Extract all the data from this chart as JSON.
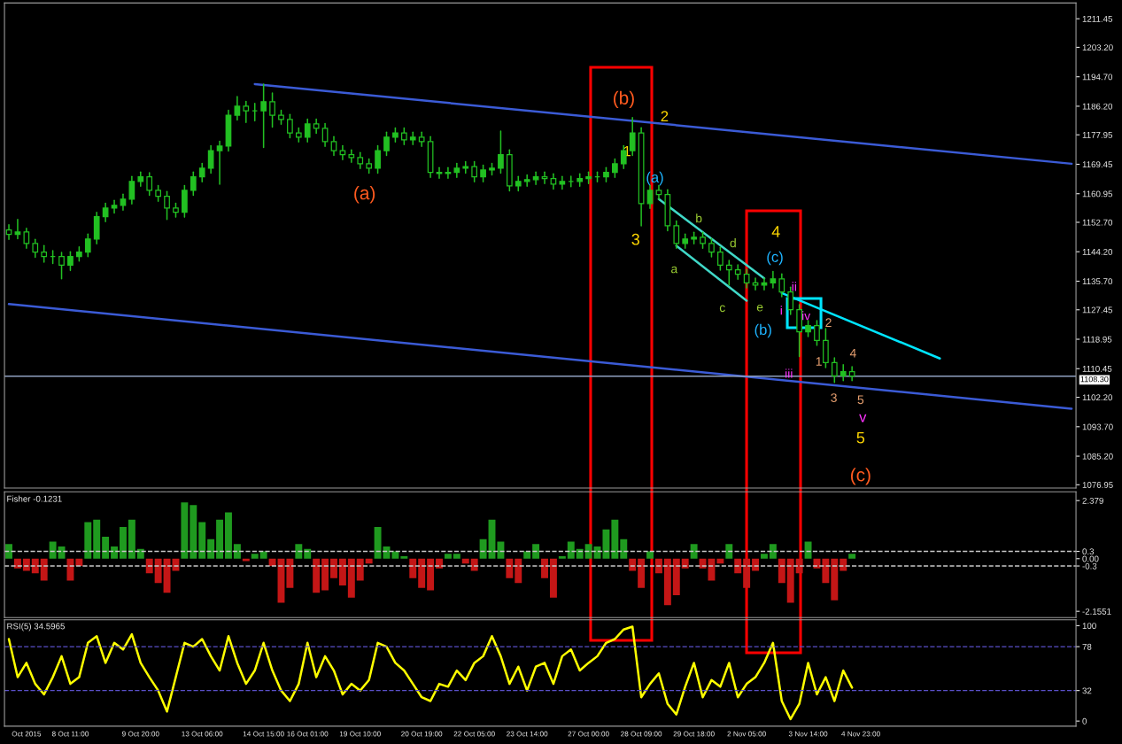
{
  "chart_data": [
    {
      "type": "candlestick",
      "tick_labels": "y",
      "grid": false,
      "ylim": [
        1076.0,
        1216.0
      ],
      "yticks": [
        {
          "value": 1211.45,
          "label": "1211.45"
        },
        {
          "value": 1203.2,
          "label": "1203.20"
        },
        {
          "value": 1194.7,
          "label": "1194.70"
        },
        {
          "value": 1186.2,
          "label": "1186.20"
        },
        {
          "value": 1177.95,
          "label": "1177.95"
        },
        {
          "value": 1169.45,
          "label": "1169.45"
        },
        {
          "value": 1160.95,
          "label": "1160.95"
        },
        {
          "value": 1152.7,
          "label": "1152.70"
        },
        {
          "value": 1144.2,
          "label": "1144.20"
        },
        {
          "value": 1135.7,
          "label": "1135.70"
        },
        {
          "value": 1127.45,
          "label": "1127.45"
        },
        {
          "value": 1118.95,
          "label": "1118.95"
        },
        {
          "value": 1110.45,
          "label": "1110.45"
        },
        {
          "value": 1102.2,
          "label": "1102.20"
        },
        {
          "value": 1093.7,
          "label": "1093.70"
        },
        {
          "value": 1085.2,
          "label": "1085.20"
        },
        {
          "value": 1076.95,
          "label": "1076.95"
        }
      ],
      "series": [
        {
          "type": "candlestick",
          "color": "#22c022",
          "ohlc": [
            [
              1150.5,
              1152.0,
              1147.8,
              1149.2
            ],
            [
              1149.2,
              1153.5,
              1148.0,
              1149.9
            ],
            [
              1149.9,
              1151.0,
              1145.2,
              1146.6
            ],
            [
              1146.6,
              1147.8,
              1142.6,
              1144.1
            ],
            [
              1144.1,
              1146.0,
              1141.2,
              1142.8
            ],
            [
              1142.8,
              1144.5,
              1140.8,
              1142.8
            ],
            [
              1142.8,
              1144.0,
              1136.4,
              1140.3
            ],
            [
              1140.3,
              1144.2,
              1138.8,
              1142.8
            ],
            [
              1142.8,
              1145.6,
              1141.5,
              1144.1
            ],
            [
              1144.1,
              1149.3,
              1142.8,
              1147.9
            ],
            [
              1147.9,
              1155.6,
              1146.5,
              1154.3
            ],
            [
              1154.3,
              1158.2,
              1152.9,
              1156.8
            ],
            [
              1156.8,
              1159.0,
              1155.4,
              1157.6
            ],
            [
              1157.6,
              1160.8,
              1156.2,
              1159.4
            ],
            [
              1159.4,
              1165.9,
              1158.0,
              1164.5
            ],
            [
              1164.5,
              1167.2,
              1163.1,
              1165.8
            ],
            [
              1165.8,
              1167.0,
              1160.5,
              1161.9
            ],
            [
              1161.9,
              1163.3,
              1158.8,
              1160.2
            ],
            [
              1160.2,
              1161.6,
              1153.5,
              1156.8
            ],
            [
              1156.8,
              1158.2,
              1154.2,
              1155.6
            ],
            [
              1155.6,
              1163.3,
              1154.2,
              1161.9
            ],
            [
              1161.9,
              1167.2,
              1160.5,
              1165.8
            ],
            [
              1165.8,
              1169.7,
              1164.4,
              1168.3
            ],
            [
              1168.3,
              1174.8,
              1166.9,
              1173.4
            ],
            [
              1173.4,
              1176.1,
              1163.7,
              1174.7
            ],
            [
              1174.7,
              1185.0,
              1173.3,
              1183.6
            ],
            [
              1183.6,
              1189.0,
              1182.2,
              1186.2
            ],
            [
              1186.2,
              1187.6,
              1181.5,
              1184.9
            ],
            [
              1184.9,
              1187.0,
              1182.0,
              1184.9
            ],
            [
              1184.9,
              1192.6,
              1174.3,
              1187.5
            ],
            [
              1187.5,
              1190.0,
              1180.2,
              1183.6
            ],
            [
              1183.6,
              1185.0,
              1181.0,
              1182.4
            ],
            [
              1182.4,
              1183.8,
              1177.1,
              1178.5
            ],
            [
              1178.5,
              1179.9,
              1175.9,
              1177.3
            ],
            [
              1177.3,
              1182.5,
              1175.9,
              1181.1
            ],
            [
              1181.1,
              1182.5,
              1178.4,
              1179.8
            ],
            [
              1179.8,
              1181.2,
              1174.6,
              1176.0
            ],
            [
              1176.0,
              1177.4,
              1172.0,
              1173.4
            ],
            [
              1173.4,
              1174.8,
              1170.8,
              1172.2
            ],
            [
              1172.2,
              1173.6,
              1170.0,
              1171.4
            ],
            [
              1171.4,
              1172.8,
              1168.2,
              1169.6
            ],
            [
              1169.6,
              1171.0,
              1166.9,
              1168.3
            ],
            [
              1168.3,
              1174.8,
              1166.9,
              1173.4
            ],
            [
              1173.4,
              1178.7,
              1172.0,
              1177.3
            ],
            [
              1177.3,
              1179.9,
              1175.9,
              1178.5
            ],
            [
              1178.5,
              1179.9,
              1175.1,
              1176.5
            ],
            [
              1176.5,
              1178.7,
              1175.1,
              1177.3
            ],
            [
              1177.3,
              1178.7,
              1174.6,
              1176.0
            ],
            [
              1176.0,
              1177.4,
              1165.7,
              1167.1
            ],
            [
              1167.1,
              1168.5,
              1165.4,
              1166.8
            ],
            [
              1166.8,
              1168.5,
              1165.4,
              1167.1
            ],
            [
              1167.1,
              1169.7,
              1165.7,
              1168.3
            ],
            [
              1168.3,
              1170.2,
              1166.9,
              1168.8
            ],
            [
              1168.8,
              1170.2,
              1164.4,
              1165.8
            ],
            [
              1165.8,
              1169.2,
              1164.4,
              1167.8
            ],
            [
              1167.8,
              1169.7,
              1166.4,
              1168.3
            ],
            [
              1168.3,
              1179.0,
              1166.9,
              1172.2
            ],
            [
              1172.2,
              1173.6,
              1161.8,
              1163.2
            ],
            [
              1163.2,
              1165.9,
              1161.8,
              1164.5
            ],
            [
              1164.5,
              1166.4,
              1163.1,
              1165.0
            ],
            [
              1165.0,
              1167.2,
              1163.6,
              1165.8
            ],
            [
              1165.8,
              1167.2,
              1163.9,
              1165.3
            ],
            [
              1165.3,
              1166.7,
              1162.3,
              1163.7
            ],
            [
              1163.7,
              1165.9,
              1162.3,
              1164.5
            ],
            [
              1164.5,
              1166.0,
              1163.0,
              1164.5
            ],
            [
              1164.5,
              1166.7,
              1163.1,
              1165.3
            ],
            [
              1165.3,
              1167.2,
              1163.9,
              1165.8
            ],
            [
              1165.8,
              1167.2,
              1164.4,
              1165.8
            ],
            [
              1165.8,
              1168.5,
              1164.4,
              1167.1
            ],
            [
              1167.1,
              1171.0,
              1165.7,
              1169.6
            ],
            [
              1169.6,
              1174.8,
              1168.2,
              1173.4
            ],
            [
              1173.4,
              1182.9,
              1172.0,
              1178.5
            ],
            [
              1178.5,
              1180.0,
              1151.7,
              1158.1
            ],
            [
              1158.1,
              1163.3,
              1156.7,
              1161.9
            ],
            [
              1161.9,
              1163.3,
              1159.3,
              1160.7
            ],
            [
              1160.7,
              1162.1,
              1150.3,
              1151.7
            ],
            [
              1151.7,
              1153.1,
              1145.2,
              1146.6
            ],
            [
              1146.6,
              1149.3,
              1145.2,
              1147.9
            ],
            [
              1147.9,
              1149.8,
              1146.5,
              1148.4
            ],
            [
              1148.4,
              1149.8,
              1145.2,
              1146.6
            ],
            [
              1146.6,
              1148.0,
              1142.7,
              1144.1
            ],
            [
              1144.1,
              1145.5,
              1138.9,
              1140.3
            ],
            [
              1140.3,
              1141.7,
              1134.6,
              1139.0
            ],
            [
              1139.0,
              1140.4,
              1136.3,
              1137.7
            ],
            [
              1137.7,
              1139.1,
              1133.8,
              1135.2
            ],
            [
              1135.2,
              1136.6,
              1133.2,
              1134.6
            ],
            [
              1134.6,
              1136.6,
              1133.2,
              1135.2
            ],
            [
              1135.2,
              1138.5,
              1133.8,
              1136.4
            ],
            [
              1136.4,
              1137.8,
              1131.2,
              1132.6
            ],
            [
              1132.6,
              1134.0,
              1126.1,
              1127.5
            ],
            [
              1127.5,
              1128.9,
              1114.0,
              1121.1
            ],
            [
              1121.1,
              1124.3,
              1119.7,
              1122.9
            ],
            [
              1122.9,
              1124.3,
              1117.2,
              1118.6
            ],
            [
              1118.6,
              1122.0,
              1110.8,
              1112.2
            ],
            [
              1112.2,
              1113.6,
              1106.5,
              1108.4
            ],
            [
              1108.4,
              1111.6,
              1107.0,
              1109.6
            ],
            [
              1109.6,
              1111.0,
              1107.0,
              1108.3
            ],
            null,
            null,
            null,
            null,
            null,
            null,
            null,
            null,
            null,
            null,
            null,
            null,
            null,
            null,
            null,
            null,
            null,
            null,
            null,
            null,
            null,
            null,
            null,
            null,
            null
          ]
        },
        {
          "type": "line",
          "color": "#3b5bd6",
          "values": [
            null,
            null,
            null,
            null,
            null,
            null,
            null,
            null,
            null,
            null,
            null,
            null,
            null,
            null,
            null,
            null,
            null,
            null,
            null,
            null,
            null,
            null,
            null,
            null,
            null,
            null,
            null,
            null,
            1192.6,
            null,
            null,
            null,
            null,
            null,
            null,
            null,
            null,
            null,
            null,
            null,
            null,
            null,
            null,
            null,
            null,
            null,
            null,
            null,
            null,
            null,
            null,
            null,
            null,
            null,
            null,
            null,
            null,
            null,
            null,
            null,
            null,
            null,
            null,
            null,
            null,
            null,
            null,
            null,
            null,
            null,
            null,
            null,
            null,
            null,
            null,
            null,
            null,
            null,
            null,
            null,
            null,
            null,
            null,
            null,
            null,
            null,
            null,
            null,
            null,
            null,
            null,
            null,
            null,
            null,
            null,
            null,
            null,
            null,
            null,
            null,
            null,
            null,
            null,
            null,
            null,
            null,
            null,
            null,
            null,
            null,
            null,
            null,
            null,
            null,
            null,
            null,
            null,
            null,
            null,
            null,
            null,
            1169.6
          ]
        },
        {
          "type": "line",
          "color": "#3b5bd6",
          "values": [
            1129.1,
            null,
            null,
            null,
            null,
            null,
            null,
            null,
            null,
            null,
            null,
            null,
            null,
            null,
            null,
            null,
            null,
            null,
            null,
            null,
            null,
            null,
            null,
            null,
            null,
            null,
            null,
            null,
            null,
            null,
            null,
            null,
            null,
            null,
            null,
            null,
            null,
            null,
            null,
            null,
            null,
            null,
            null,
            null,
            null,
            null,
            null,
            null,
            null,
            null,
            null,
            null,
            null,
            null,
            null,
            null,
            null,
            null,
            null,
            null,
            null,
            null,
            null,
            null,
            null,
            null,
            null,
            null,
            null,
            null,
            null,
            null,
            null,
            null,
            null,
            null,
            null,
            null,
            null,
            null,
            null,
            null,
            null,
            null,
            null,
            null,
            null,
            null,
            null,
            null,
            null,
            null,
            null,
            null,
            null,
            null,
            null,
            null,
            null,
            null,
            null,
            null,
            null,
            null,
            null,
            null,
            null,
            null,
            null,
            null,
            null,
            null,
            null,
            null,
            null,
            null,
            null,
            null,
            null,
            null,
            null,
            1098.9
          ]
        },
        {
          "type": "line",
          "color": "#40d8c8",
          "values": [
            null,
            null,
            null,
            null,
            null,
            null,
            null,
            null,
            null,
            null,
            null,
            null,
            null,
            null,
            null,
            null,
            null,
            null,
            null,
            null,
            null,
            null,
            null,
            null,
            null,
            null,
            null,
            null,
            null,
            null,
            null,
            null,
            null,
            null,
            null,
            null,
            null,
            null,
            null,
            null,
            null,
            null,
            null,
            null,
            null,
            null,
            null,
            null,
            null,
            null,
            null,
            null,
            null,
            null,
            null,
            null,
            null,
            null,
            null,
            null,
            null,
            null,
            null,
            null,
            null,
            null,
            null,
            null,
            null,
            null,
            null,
            null,
            null,
            null,
            1159.4,
            null,
            null,
            null,
            null,
            null,
            null,
            null,
            null,
            null,
            null,
            null,
            1136.5,
            null,
            null,
            null,
            null,
            null,
            null,
            null,
            null,
            null,
            null,
            null,
            null,
            null,
            null,
            null,
            null,
            null,
            null,
            null,
            null,
            null,
            null,
            null,
            null,
            null,
            null,
            null,
            null,
            null,
            null,
            null,
            null,
            null,
            null,
            null
          ]
        },
        {
          "type": "line",
          "color": "#40d8c8",
          "values": [
            null,
            null,
            null,
            null,
            null,
            null,
            null,
            null,
            null,
            null,
            null,
            null,
            null,
            null,
            null,
            null,
            null,
            null,
            null,
            null,
            null,
            null,
            null,
            null,
            null,
            null,
            null,
            null,
            null,
            null,
            null,
            null,
            null,
            null,
            null,
            null,
            null,
            null,
            null,
            null,
            null,
            null,
            null,
            null,
            null,
            null,
            null,
            null,
            null,
            null,
            null,
            null,
            null,
            null,
            null,
            null,
            null,
            null,
            null,
            null,
            null,
            null,
            null,
            null,
            null,
            null,
            null,
            null,
            null,
            null,
            null,
            null,
            null,
            null,
            null,
            null,
            1145.9,
            null,
            null,
            null,
            null,
            null,
            null,
            null,
            1130.1,
            null,
            null,
            null,
            null,
            null,
            null,
            null,
            null,
            null,
            null,
            null,
            null,
            null,
            null,
            null,
            null,
            null,
            null,
            null,
            null,
            null,
            null,
            null,
            null,
            null,
            null,
            null,
            null,
            null,
            null,
            null,
            null,
            null,
            null,
            null,
            null,
            null
          ]
        },
        {
          "type": "line",
          "color": "#00e5ff",
          "values": [
            null,
            null,
            null,
            null,
            null,
            null,
            null,
            null,
            null,
            null,
            null,
            null,
            null,
            null,
            null,
            null,
            null,
            null,
            null,
            null,
            null,
            null,
            null,
            null,
            null,
            null,
            null,
            null,
            null,
            null,
            null,
            null,
            null,
            null,
            null,
            null,
            null,
            null,
            null,
            null,
            null,
            null,
            null,
            null,
            null,
            null,
            null,
            null,
            null,
            null,
            null,
            null,
            null,
            null,
            null,
            null,
            null,
            null,
            null,
            null,
            null,
            null,
            null,
            null,
            null,
            null,
            null,
            null,
            null,
            null,
            null,
            null,
            null,
            null,
            null,
            null,
            null,
            null,
            null,
            null,
            null,
            null,
            null,
            null,
            null,
            null,
            null,
            null,
            1132.3,
            null,
            null,
            null,
            null,
            null,
            null,
            null,
            null,
            null,
            null,
            null,
            null,
            null,
            null,
            null,
            null,
            null,
            1113.4,
            null,
            null,
            null,
            null,
            null,
            null,
            null,
            null,
            null,
            null,
            null,
            null,
            null,
            null,
            null
          ]
        }
      ],
      "ref_lines": [
        {
          "axis": "y",
          "value": 1108.3,
          "label": "1108.30",
          "color": "#8fa0c0",
          "line_style": "solid"
        }
      ],
      "annotations": [
        "(a)",
        "(b)",
        "2",
        "1",
        "3",
        "(a)",
        "b",
        "a",
        "c",
        "d",
        "e",
        "4",
        "(c)",
        "(b)",
        "ii",
        "i",
        "iv",
        "iii",
        "2",
        "1",
        "4",
        "3",
        "5",
        "v",
        "5",
        "(c)"
      ]
    },
    {
      "type": "bar",
      "title": "Fisher -0.1231",
      "tick_labels": "y",
      "grid": false,
      "ylim": [
        -2.41,
        2.74
      ],
      "yticks": [
        2.379,
        0.3,
        {
          "value": 0,
          "label": "0.00"
        },
        -0.3,
        -2.1551
      ],
      "series": [
        {
          "color": "#1f9a1f",
          "values": [
            0.6,
            null,
            null,
            null,
            null,
            0.7,
            0.5,
            null,
            null,
            1.5,
            1.6,
            0.9,
            0.5,
            1.3,
            1.6,
            0.4,
            null,
            null,
            null,
            null,
            2.3,
            2.2,
            1.5,
            0.8,
            1.6,
            1.9,
            0.6,
            null,
            0.2,
            0.3,
            null,
            null,
            null,
            0.6,
            0.4,
            null,
            null,
            null,
            null,
            null,
            null,
            null,
            1.3,
            0.5,
            0.3,
            0.1,
            null,
            null,
            null,
            null,
            0.2,
            0.2,
            null,
            null,
            0.8,
            1.6,
            0.7,
            null,
            null,
            0.3,
            0.6,
            null,
            null,
            0.1,
            0.7,
            0.4,
            0.6,
            0.5,
            1.2,
            1.6,
            0.8,
            null,
            null,
            0.3,
            null,
            null,
            null,
            null,
            0.6,
            null,
            null,
            null,
            0.6,
            null,
            null,
            null,
            0.2,
            0.6,
            null,
            null,
            null,
            0.7,
            null,
            null,
            null,
            null,
            0.2,
            null,
            null,
            null,
            null,
            null,
            null,
            null,
            null,
            null,
            null,
            null,
            null,
            null,
            null,
            null,
            null,
            null,
            null,
            null,
            null,
            null,
            null,
            null,
            null,
            null
          ]
        },
        {
          "color": "#c41616",
          "values": [
            null,
            -0.4,
            -0.5,
            -0.6,
            -0.9,
            null,
            null,
            -0.9,
            -0.3,
            null,
            null,
            null,
            null,
            null,
            null,
            null,
            -0.6,
            -1.0,
            -1.4,
            -0.5,
            null,
            null,
            null,
            null,
            null,
            null,
            null,
            -0.1,
            null,
            null,
            -0.3,
            -1.8,
            -1.2,
            null,
            null,
            -1.4,
            -1.3,
            -0.8,
            -1.1,
            -1.6,
            -0.9,
            -0.2,
            null,
            null,
            null,
            null,
            -0.8,
            -1.2,
            -1.3,
            -0.4,
            null,
            null,
            -0.2,
            -0.5,
            null,
            null,
            null,
            -0.8,
            -1.0,
            null,
            null,
            -0.8,
            -1.6,
            null,
            null,
            null,
            null,
            null,
            null,
            null,
            null,
            -0.5,
            -1.2,
            null,
            -0.6,
            -1.9,
            -1.5,
            -0.4,
            null,
            -0.4,
            -0.9,
            -0.2,
            null,
            -0.6,
            -1.2,
            -0.5,
            null,
            null,
            -1.0,
            -1.8,
            -0.6,
            null,
            -0.4,
            -1.0,
            -1.7,
            -0.5,
            null,
            null,
            null,
            null,
            null,
            null,
            null,
            null,
            null,
            null,
            null,
            null,
            null,
            null,
            null,
            null,
            null,
            null,
            null,
            null,
            null,
            null,
            null,
            null,
            null,
            null
          ]
        }
      ],
      "ref_lines": [
        {
          "axis": "y",
          "value": 0.3,
          "color": "#c8c8c8",
          "line_style": "dashed"
        },
        {
          "axis": "y",
          "value": -0.3,
          "color": "#c8c8c8",
          "line_style": "dashed"
        }
      ]
    },
    {
      "type": "line",
      "title": "RSI(5) 34.5965",
      "grid": false,
      "categories": [
        null,
        null,
        "Oct 2015",
        null,
        null,
        null,
        null,
        "8 Oct 11:00",
        null,
        null,
        null,
        null,
        null,
        null,
        null,
        "9 Oct 20:00",
        null,
        null,
        null,
        null,
        null,
        null,
        "13 Oct 06:00",
        null,
        null,
        null,
        null,
        null,
        null,
        "14 Oct 15:00",
        null,
        null,
        null,
        null,
        "16 Oct 01:00",
        null,
        null,
        null,
        null,
        null,
        "19 Oct 10:00",
        null,
        null,
        null,
        null,
        null,
        null,
        "20 Oct 19:00",
        null,
        null,
        null,
        null,
        null,
        "22 Oct 05:00",
        null,
        null,
        null,
        null,
        null,
        "23 Oct 14:00",
        null,
        null,
        null,
        null,
        null,
        null,
        "27 Oct 00:00",
        null,
        null,
        null,
        null,
        null,
        "28 Oct 09:00",
        null,
        null,
        null,
        null,
        null,
        "29 Oct 18:00",
        null,
        null,
        null,
        null,
        null,
        "2 Nov 05:00",
        null,
        null,
        null,
        null,
        null,
        null,
        "3 Nov 14:00",
        null,
        null,
        null,
        null,
        null,
        "4 Nov 23:00",
        null,
        null,
        null,
        null,
        null,
        null,
        null,
        null,
        null,
        null,
        null,
        null,
        null,
        null,
        null,
        null,
        null,
        null,
        null,
        null,
        null,
        null,
        null,
        null
      ],
      "ylim": [
        -5.3,
        106.2
      ],
      "yticks": [
        100,
        78,
        32,
        0
      ],
      "series": [
        {
          "color": "#ffff00",
          "values": [
            86,
            46,
            61,
            39,
            28,
            46,
            68,
            39,
            46,
            82,
            89,
            61,
            82,
            75,
            91,
            61,
            46,
            32,
            10,
            46,
            82,
            78,
            86,
            68,
            53,
            89,
            61,
            39,
            53,
            82,
            53,
            32,
            21,
            39,
            82,
            46,
            68,
            53,
            28,
            39,
            32,
            43,
            82,
            78,
            61,
            53,
            39,
            25,
            21,
            39,
            36,
            53,
            43,
            61,
            68,
            89,
            68,
            39,
            57,
            32,
            57,
            61,
            39,
            68,
            75,
            53,
            61,
            68,
            82,
            86,
            96,
            99,
            25,
            39,
            50,
            18,
            7,
            36,
            61,
            25,
            43,
            36,
            61,
            25,
            39,
            46,
            61,
            82,
            21,
            2,
            18,
            61,
            28,
            46,
            21,
            53,
            35,
            null,
            null,
            null,
            null,
            null,
            null,
            null,
            null,
            null,
            null,
            null,
            null,
            null,
            null,
            null,
            null,
            null,
            null,
            null,
            null,
            null,
            null,
            null,
            null,
            null
          ]
        }
      ],
      "ref_lines": [
        {
          "axis": "y",
          "value": 78,
          "color": "#5a4fc8",
          "line_style": "dashed"
        },
        {
          "axis": "y",
          "value": 32,
          "color": "#5a4fc8",
          "line_style": "dashed"
        }
      ]
    }
  ]
}
